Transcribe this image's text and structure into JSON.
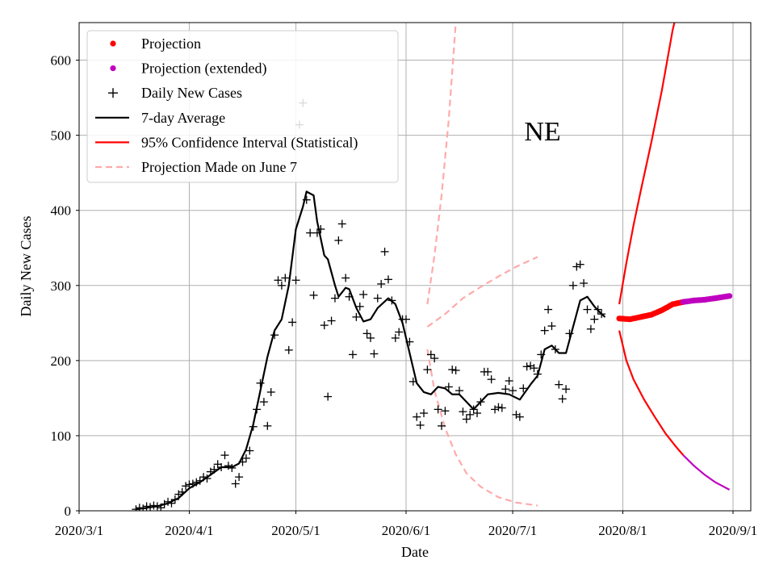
{
  "chart_data": {
    "type": "line",
    "annotation": "NE",
    "xlabel": "Date",
    "ylabel": "Daily New Cases",
    "xlim": [
      "2020-03-01",
      "2020-09-06"
    ],
    "ylim": [
      0,
      650
    ],
    "grid": true,
    "legend_position": "top-left",
    "x_ticks": [
      {
        "date": "2020-03-01",
        "label": "2020/3/1"
      },
      {
        "date": "2020-04-01",
        "label": "2020/4/1"
      },
      {
        "date": "2020-05-01",
        "label": "2020/5/1"
      },
      {
        "date": "2020-06-01",
        "label": "2020/6/1"
      },
      {
        "date": "2020-07-01",
        "label": "2020/7/1"
      },
      {
        "date": "2020-08-01",
        "label": "2020/8/1"
      },
      {
        "date": "2020-09-01",
        "label": "2020/9/1"
      }
    ],
    "y_ticks": [
      0,
      100,
      200,
      300,
      400,
      500,
      600
    ],
    "legend": [
      {
        "key": "projection",
        "label": "Projection",
        "kind": "dot",
        "color": "#ff0000"
      },
      {
        "key": "projection_ext",
        "label": "Projection (extended)",
        "kind": "dot",
        "color": "#bf00bf"
      },
      {
        "key": "daily",
        "label": "Daily New Cases",
        "kind": "plus",
        "color": "#000000"
      },
      {
        "key": "avg",
        "label": "7-day Average",
        "kind": "line",
        "color": "#000000"
      },
      {
        "key": "ci",
        "label": "95% Confidence Interval (Statistical)",
        "kind": "line",
        "color": "#ff0000"
      },
      {
        "key": "old",
        "label": "Projection Made on June 7",
        "kind": "dashed",
        "color": "#ffaaaa"
      }
    ],
    "series": {
      "daily_new_cases": [
        [
          "2020-03-17",
          2
        ],
        [
          "2020-03-18",
          4
        ],
        [
          "2020-03-19",
          3
        ],
        [
          "2020-03-20",
          6
        ],
        [
          "2020-03-21",
          5
        ],
        [
          "2020-03-22",
          7
        ],
        [
          "2020-03-23",
          6
        ],
        [
          "2020-03-24",
          4
        ],
        [
          "2020-03-25",
          9
        ],
        [
          "2020-03-26",
          12
        ],
        [
          "2020-03-27",
          10
        ],
        [
          "2020-03-28",
          15
        ],
        [
          "2020-03-29",
          22
        ],
        [
          "2020-03-30",
          25
        ],
        [
          "2020-03-31",
          33
        ],
        [
          "2020-04-01",
          35
        ],
        [
          "2020-04-02",
          36
        ],
        [
          "2020-04-03",
          38
        ],
        [
          "2020-04-04",
          40
        ],
        [
          "2020-04-05",
          45
        ],
        [
          "2020-04-06",
          43
        ],
        [
          "2020-04-07",
          52
        ],
        [
          "2020-04-08",
          55
        ],
        [
          "2020-04-09",
          62
        ],
        [
          "2020-04-10",
          58
        ],
        [
          "2020-04-11",
          74
        ],
        [
          "2020-04-12",
          60
        ],
        [
          "2020-04-13",
          57
        ],
        [
          "2020-04-14",
          36
        ],
        [
          "2020-04-15",
          45
        ],
        [
          "2020-04-16",
          65
        ],
        [
          "2020-04-17",
          70
        ],
        [
          "2020-04-18",
          80
        ],
        [
          "2020-04-19",
          112
        ],
        [
          "2020-04-20",
          135
        ],
        [
          "2020-04-21",
          170
        ],
        [
          "2020-04-22",
          145
        ],
        [
          "2020-04-23",
          113
        ],
        [
          "2020-04-24",
          158
        ],
        [
          "2020-04-25",
          234
        ],
        [
          "2020-04-26",
          307
        ],
        [
          "2020-04-27",
          300
        ],
        [
          "2020-04-28",
          310
        ],
        [
          "2020-04-29",
          214
        ],
        [
          "2020-04-30",
          251
        ],
        [
          "2020-05-01",
          307
        ],
        [
          "2020-05-02",
          514
        ],
        [
          "2020-05-03",
          543
        ],
        [
          "2020-05-04",
          414
        ],
        [
          "2020-05-05",
          370
        ],
        [
          "2020-05-06",
          287
        ],
        [
          "2020-05-07",
          370
        ],
        [
          "2020-05-08",
          375
        ],
        [
          "2020-05-09",
          247
        ],
        [
          "2020-05-10",
          152
        ],
        [
          "2020-05-11",
          253
        ],
        [
          "2020-05-12",
          283
        ],
        [
          "2020-05-13",
          360
        ],
        [
          "2020-05-14",
          382
        ],
        [
          "2020-05-15",
          310
        ],
        [
          "2020-05-16",
          285
        ],
        [
          "2020-05-17",
          208
        ],
        [
          "2020-05-18",
          258
        ],
        [
          "2020-05-19",
          272
        ],
        [
          "2020-05-20",
          288
        ],
        [
          "2020-05-21",
          236
        ],
        [
          "2020-05-22",
          230
        ],
        [
          "2020-05-23",
          209
        ],
        [
          "2020-05-24",
          283
        ],
        [
          "2020-05-25",
          302
        ],
        [
          "2020-05-26",
          345
        ],
        [
          "2020-05-27",
          308
        ],
        [
          "2020-05-28",
          280
        ],
        [
          "2020-05-29",
          230
        ],
        [
          "2020-05-30",
          238
        ],
        [
          "2020-05-31",
          255
        ],
        [
          "2020-06-01",
          255
        ],
        [
          "2020-06-02",
          225
        ],
        [
          "2020-06-03",
          172
        ],
        [
          "2020-06-04",
          125
        ],
        [
          "2020-06-05",
          114
        ],
        [
          "2020-06-06",
          130
        ],
        [
          "2020-06-07",
          188
        ],
        [
          "2020-06-08",
          208
        ],
        [
          "2020-06-09",
          203
        ],
        [
          "2020-06-10",
          135
        ],
        [
          "2020-06-11",
          113
        ],
        [
          "2020-06-12",
          133
        ],
        [
          "2020-06-13",
          165
        ],
        [
          "2020-06-14",
          188
        ],
        [
          "2020-06-15",
          187
        ],
        [
          "2020-06-16",
          160
        ],
        [
          "2020-06-17",
          132
        ],
        [
          "2020-06-18",
          122
        ],
        [
          "2020-06-19",
          128
        ],
        [
          "2020-06-20",
          135
        ],
        [
          "2020-06-21",
          130
        ],
        [
          "2020-06-22",
          145
        ],
        [
          "2020-06-23",
          185
        ],
        [
          "2020-06-24",
          185
        ],
        [
          "2020-06-25",
          175
        ],
        [
          "2020-06-26",
          135
        ],
        [
          "2020-06-27",
          138
        ],
        [
          "2020-06-28",
          137
        ],
        [
          "2020-06-29",
          162
        ],
        [
          "2020-06-30",
          173
        ],
        [
          "2020-07-01",
          160
        ],
        [
          "2020-07-02",
          128
        ],
        [
          "2020-07-03",
          125
        ],
        [
          "2020-07-04",
          163
        ],
        [
          "2020-07-05",
          192
        ],
        [
          "2020-07-06",
          193
        ],
        [
          "2020-07-07",
          190
        ],
        [
          "2020-07-08",
          182
        ],
        [
          "2020-07-09",
          208
        ],
        [
          "2020-07-10",
          240
        ],
        [
          "2020-07-11",
          268
        ],
        [
          "2020-07-12",
          246
        ],
        [
          "2020-07-13",
          215
        ],
        [
          "2020-07-14",
          168
        ],
        [
          "2020-07-15",
          149
        ],
        [
          "2020-07-16",
          162
        ],
        [
          "2020-07-17",
          236
        ],
        [
          "2020-07-18",
          300
        ],
        [
          "2020-07-19",
          325
        ],
        [
          "2020-07-20",
          328
        ],
        [
          "2020-07-21",
          303
        ],
        [
          "2020-07-22",
          268
        ],
        [
          "2020-07-23",
          242
        ],
        [
          "2020-07-24",
          255
        ],
        [
          "2020-07-25",
          268
        ],
        [
          "2020-07-26",
          262
        ]
      ],
      "seven_day_average": [
        [
          "2020-03-17",
          2
        ],
        [
          "2020-03-20",
          4
        ],
        [
          "2020-03-23",
          6
        ],
        [
          "2020-03-26",
          10
        ],
        [
          "2020-03-29",
          17
        ],
        [
          "2020-04-01",
          30
        ],
        [
          "2020-04-04",
          38
        ],
        [
          "2020-04-07",
          48
        ],
        [
          "2020-04-10",
          58
        ],
        [
          "2020-04-13",
          58
        ],
        [
          "2020-04-15",
          63
        ],
        [
          "2020-04-17",
          82
        ],
        [
          "2020-04-19",
          115
        ],
        [
          "2020-04-21",
          160
        ],
        [
          "2020-04-23",
          205
        ],
        [
          "2020-04-25",
          240
        ],
        [
          "2020-04-27",
          255
        ],
        [
          "2020-04-29",
          300
        ],
        [
          "2020-05-01",
          375
        ],
        [
          "2020-05-03",
          405
        ],
        [
          "2020-05-04",
          425
        ],
        [
          "2020-05-06",
          420
        ],
        [
          "2020-05-07",
          385
        ],
        [
          "2020-05-09",
          340
        ],
        [
          "2020-05-10",
          335
        ],
        [
          "2020-05-12",
          300
        ],
        [
          "2020-05-13",
          285
        ],
        [
          "2020-05-15",
          297
        ],
        [
          "2020-05-16",
          295
        ],
        [
          "2020-05-18",
          270
        ],
        [
          "2020-05-20",
          252
        ],
        [
          "2020-05-22",
          255
        ],
        [
          "2020-05-24",
          270
        ],
        [
          "2020-05-27",
          283
        ],
        [
          "2020-05-29",
          275
        ],
        [
          "2020-05-31",
          250
        ],
        [
          "2020-06-02",
          210
        ],
        [
          "2020-06-04",
          170
        ],
        [
          "2020-06-06",
          158
        ],
        [
          "2020-06-08",
          155
        ],
        [
          "2020-06-10",
          165
        ],
        [
          "2020-06-12",
          163
        ],
        [
          "2020-06-14",
          155
        ],
        [
          "2020-06-16",
          155
        ],
        [
          "2020-06-18",
          145
        ],
        [
          "2020-06-20",
          135
        ],
        [
          "2020-06-22",
          145
        ],
        [
          "2020-06-24",
          155
        ],
        [
          "2020-06-27",
          157
        ],
        [
          "2020-06-30",
          155
        ],
        [
          "2020-07-03",
          148
        ],
        [
          "2020-07-06",
          168
        ],
        [
          "2020-07-08",
          180
        ],
        [
          "2020-07-10",
          215
        ],
        [
          "2020-07-12",
          220
        ],
        [
          "2020-07-14",
          210
        ],
        [
          "2020-07-16",
          210
        ],
        [
          "2020-07-18",
          245
        ],
        [
          "2020-07-20",
          280
        ],
        [
          "2020-07-22",
          285
        ],
        [
          "2020-07-24",
          272
        ],
        [
          "2020-07-26",
          262
        ],
        [
          "2020-07-27",
          258
        ]
      ],
      "projection": [
        [
          "2020-07-31",
          256
        ],
        [
          "2020-08-03",
          255
        ],
        [
          "2020-08-06",
          258
        ],
        [
          "2020-08-09",
          261
        ],
        [
          "2020-08-12",
          267
        ],
        [
          "2020-08-15",
          275
        ],
        [
          "2020-08-18",
          278
        ]
      ],
      "projection_extended": [
        [
          "2020-08-18",
          278
        ],
        [
          "2020-08-21",
          280
        ],
        [
          "2020-08-24",
          281
        ],
        [
          "2020-08-27",
          283
        ],
        [
          "2020-08-31",
          286
        ]
      ],
      "ci_upper": [
        [
          "2020-07-31",
          275
        ],
        [
          "2020-08-02",
          330
        ],
        [
          "2020-08-04",
          380
        ],
        [
          "2020-08-06",
          425
        ],
        [
          "2020-08-09",
          490
        ],
        [
          "2020-08-12",
          560
        ],
        [
          "2020-08-15",
          640
        ],
        [
          "2020-08-16",
          660
        ]
      ],
      "ci_lower": [
        [
          "2020-07-31",
          240
        ],
        [
          "2020-08-02",
          200
        ],
        [
          "2020-08-04",
          175
        ],
        [
          "2020-08-07",
          148
        ],
        [
          "2020-08-10",
          125
        ],
        [
          "2020-08-13",
          103
        ],
        [
          "2020-08-16",
          85
        ],
        [
          "2020-08-18",
          74
        ]
      ],
      "ci_lower_extended": [
        [
          "2020-08-18",
          74
        ],
        [
          "2020-08-21",
          60
        ],
        [
          "2020-08-24",
          48
        ],
        [
          "2020-08-27",
          38
        ],
        [
          "2020-08-31",
          28
        ]
      ],
      "june7_upper": [
        [
          "2020-06-07",
          275
        ],
        [
          "2020-06-09",
          340
        ],
        [
          "2020-06-11",
          420
        ],
        [
          "2020-06-13",
          520
        ],
        [
          "2020-06-15",
          650
        ]
      ],
      "june7_center": [
        [
          "2020-06-07",
          245
        ],
        [
          "2020-06-12",
          262
        ],
        [
          "2020-06-17",
          283
        ],
        [
          "2020-06-22",
          298
        ],
        [
          "2020-06-27",
          312
        ],
        [
          "2020-07-02",
          325
        ],
        [
          "2020-07-08",
          338
        ]
      ],
      "june7_lower": [
        [
          "2020-06-07",
          215
        ],
        [
          "2020-06-09",
          160
        ],
        [
          "2020-06-12",
          110
        ],
        [
          "2020-06-15",
          75
        ],
        [
          "2020-06-18",
          50
        ],
        [
          "2020-06-22",
          32
        ],
        [
          "2020-06-27",
          18
        ],
        [
          "2020-07-02",
          11
        ],
        [
          "2020-07-08",
          7
        ]
      ]
    }
  }
}
